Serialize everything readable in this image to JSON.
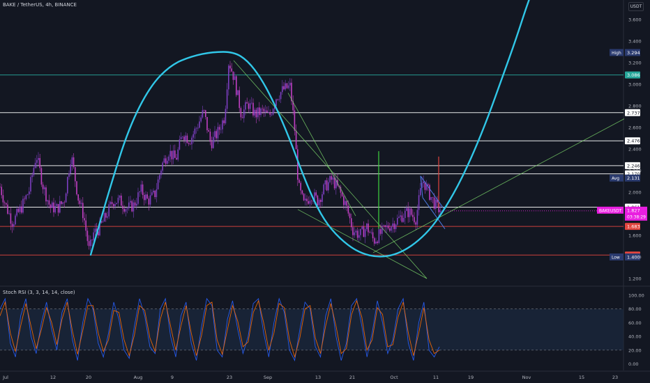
{
  "header": {
    "title": "BAKE / TetherUS, 4h, BINANCE",
    "quote_currency": "USDT"
  },
  "indicator": {
    "title": "Stoch RSI (3, 3, 14, 14, close)"
  },
  "colors": {
    "background": "#131722",
    "candle_up": "#7d3fc1",
    "candle_down": "#c03fc2",
    "curve": "#31c7e8",
    "green_line": "#7bd66a",
    "white_line": "#ffffff",
    "red_line": "#e2463f",
    "teal_line": "#26a69a",
    "stoch_k": "#2962ff",
    "stoch_d": "#ff6d00"
  },
  "chart_data": [
    {
      "type": "candlestick",
      "symbol": "BAKEUSDT",
      "interval": "4h",
      "x_ticks": [
        "Jul",
        "12",
        "20",
        "Aug",
        "9",
        "23",
        "Sep",
        "13",
        "21",
        "Oct",
        "11",
        "19",
        "Nov",
        "15",
        "23"
      ],
      "y_ticks": [
        "3.600",
        "3.400",
        "3.200",
        "3.000",
        "2.800",
        "2.600",
        "2.400",
        "2.200",
        "2.000",
        "1.800",
        "1.600",
        "1.400",
        "1.200"
      ],
      "ylim": [
        1.12,
        3.72
      ],
      "last_price": {
        "value": "1.827",
        "countdown": "03:38:29",
        "label": "BAKEUSDT"
      },
      "high": {
        "label": "High",
        "value": "3.294"
      },
      "low": {
        "label": "Low",
        "value": "1.400"
      },
      "avg": {
        "label": "Avg",
        "value": "2.131"
      },
      "price_path": [
        [
          0,
          2.05
        ],
        [
          8,
          1.88
        ],
        [
          18,
          1.72
        ],
        [
          30,
          1.85
        ],
        [
          42,
          2.02
        ],
        [
          52,
          2.35
        ],
        [
          62,
          2.05
        ],
        [
          72,
          1.86
        ],
        [
          82,
          1.85
        ],
        [
          92,
          1.92
        ],
        [
          102,
          2.35
        ],
        [
          112,
          1.95
        ],
        [
          120,
          1.78
        ],
        [
          128,
          1.45
        ],
        [
          134,
          1.62
        ],
        [
          142,
          1.66
        ],
        [
          152,
          1.78
        ],
        [
          162,
          1.92
        ],
        [
          172,
          1.92
        ],
        [
          182,
          1.85
        ],
        [
          192,
          1.88
        ],
        [
          202,
          2.02
        ],
        [
          212,
          1.92
        ],
        [
          222,
          1.98
        ],
        [
          232,
          2.25
        ],
        [
          242,
          2.38
        ],
        [
          252,
          2.3
        ],
        [
          262,
          2.55
        ],
        [
          272,
          2.48
        ],
        [
          282,
          2.6
        ],
        [
          292,
          2.75
        ],
        [
          302,
          2.45
        ],
        [
          312,
          2.55
        ],
        [
          322,
          2.7
        ],
        [
          328,
          3.22
        ],
        [
          336,
          3.05
        ],
        [
          346,
          2.72
        ],
        [
          356,
          2.82
        ],
        [
          366,
          2.72
        ],
        [
          376,
          2.75
        ],
        [
          386,
          2.7
        ],
        [
          396,
          2.88
        ],
        [
          406,
          2.95
        ],
        [
          416,
          2.98
        ],
        [
          422,
          2.62
        ],
        [
          428,
          2.05
        ],
        [
          436,
          1.88
        ],
        [
          446,
          1.98
        ],
        [
          456,
          1.92
        ],
        [
          466,
          2.05
        ],
        [
          476,
          2.12
        ],
        [
          486,
          2.02
        ],
        [
          496,
          1.88
        ],
        [
          506,
          1.65
        ],
        [
          516,
          1.6
        ],
        [
          526,
          1.68
        ],
        [
          536,
          1.55
        ],
        [
          546,
          1.62
        ],
        [
          556,
          1.68
        ],
        [
          566,
          1.72
        ],
        [
          576,
          1.78
        ],
        [
          586,
          1.82
        ],
        [
          596,
          1.75
        ],
        [
          606,
          2.12
        ],
        [
          616,
          1.98
        ],
        [
          626,
          1.86
        ],
        [
          632,
          1.83
        ]
      ],
      "horizontal_levels": [
        {
          "price": 3.086,
          "label": "3.086",
          "color": "#26a69a"
        },
        {
          "price": 2.737,
          "label": "2.737",
          "color": "#ffffff"
        },
        {
          "price": 2.476,
          "label": "2.476",
          "color": "#ffffff"
        },
        {
          "price": 2.246,
          "label": "2.246",
          "color": "#ffffff"
        },
        {
          "price": 2.17,
          "label": "2.170",
          "color": "#ffffff"
        },
        {
          "price": 1.861,
          "label": "1.861",
          "color": "#ffffff"
        },
        {
          "price": 1.683,
          "label": "1.683",
          "color": "#e2463f"
        },
        {
          "price": 1.418,
          "label": "1.418",
          "color": "#e2463f"
        }
      ],
      "curve_points": [
        [
          130,
          1.42
        ],
        [
          158,
          2.05
        ],
        [
          185,
          2.6
        ],
        [
          215,
          2.98
        ],
        [
          245,
          3.18
        ],
        [
          275,
          3.26
        ],
        [
          305,
          3.3
        ],
        [
          335,
          3.3
        ],
        [
          355,
          3.22
        ],
        [
          375,
          3.05
        ],
        [
          395,
          2.8
        ],
        [
          415,
          2.5
        ],
        [
          435,
          2.15
        ],
        [
          455,
          1.85
        ],
        [
          475,
          1.65
        ],
        [
          500,
          1.5
        ],
        [
          520,
          1.43
        ],
        [
          540,
          1.4
        ],
        [
          560,
          1.41
        ],
        [
          580,
          1.46
        ],
        [
          600,
          1.55
        ],
        [
          620,
          1.68
        ],
        [
          640,
          1.87
        ],
        [
          660,
          2.1
        ],
        [
          680,
          2.38
        ],
        [
          700,
          2.7
        ],
        [
          720,
          3.06
        ],
        [
          740,
          3.42
        ],
        [
          760,
          3.82
        ],
        [
          790,
          4.3
        ]
      ],
      "trend_lines": [
        {
          "from": [
            335,
            3.22
          ],
          "to": [
            612,
            1.2
          ],
          "color": "#7bd66a"
        },
        {
          "from": [
            427,
            1.84
          ],
          "to": [
            612,
            1.2
          ],
          "color": "#7bd66a"
        },
        {
          "from": [
            535,
            1.44
          ],
          "to": [
            895,
            2.68
          ],
          "color": "#7bd66a"
        },
        {
          "from": [
            413,
            2.92
          ],
          "to": [
            510,
            1.78
          ],
          "color": "#7bd66a"
        }
      ],
      "vertical_lines": [
        {
          "x": 543,
          "from": 1.66,
          "to": 2.38,
          "color": "#3fd33f"
        },
        {
          "x": 629,
          "from": 1.86,
          "to": 2.33,
          "color": "#e2463f"
        }
      ],
      "flag_channel": [
        [
          [
            603,
            2.15
          ],
          [
            636,
            1.85
          ]
        ],
        [
          [
            606,
            1.95
          ],
          [
            638,
            1.66
          ]
        ],
        [
          [
            603,
            2.15
          ],
          [
            606,
            1.95
          ]
        ]
      ]
    },
    {
      "type": "line",
      "name": "Stoch RSI (3, 3, 14, 14, close)",
      "y_ticks": [
        "100.00",
        "80.00",
        "60.00",
        "40.00",
        "20.00",
        "0.00"
      ],
      "ylim": [
        -5,
        105
      ],
      "bands": [
        20,
        80
      ],
      "series": [
        {
          "name": "K",
          "values": [
            80,
            95,
            30,
            10,
            70,
            95,
            40,
            15,
            60,
            90,
            50,
            20,
            75,
            95,
            35,
            5,
            60,
            95,
            80,
            30,
            10,
            45,
            90,
            65,
            20,
            8,
            55,
            95,
            70,
            25,
            15,
            80,
            95,
            40,
            10,
            70,
            90,
            30,
            5,
            55,
            95,
            85,
            20,
            10,
            65,
            92,
            50,
            15,
            40,
            88,
            95,
            45,
            10,
            60,
            95,
            75,
            20,
            5,
            50,
            90,
            80,
            25,
            10,
            70,
            95,
            40,
            5,
            30,
            85,
            95,
            55,
            10,
            45,
            92,
            60,
            15,
            35,
            80,
            95,
            30,
            5,
            60,
            90,
            20,
            10,
            25
          ]
        },
        {
          "name": "D",
          "values": [
            70,
            90,
            45,
            18,
            55,
            88,
            55,
            22,
            50,
            82,
            60,
            28,
            65,
            90,
            48,
            14,
            48,
            85,
            85,
            45,
            18,
            35,
            78,
            75,
            35,
            12,
            42,
            85,
            78,
            38,
            18,
            65,
            90,
            55,
            20,
            55,
            85,
            45,
            12,
            42,
            85,
            90,
            35,
            14,
            50,
            85,
            62,
            25,
            32,
            75,
            92,
            60,
            20,
            45,
            88,
            82,
            35,
            10,
            38,
            80,
            85,
            38,
            15,
            55,
            88,
            55,
            15,
            22,
            72,
            92,
            68,
            20,
            35,
            82,
            72,
            25,
            28,
            68,
            90,
            45,
            12,
            45,
            82,
            35,
            15,
            20
          ]
        }
      ]
    }
  ]
}
